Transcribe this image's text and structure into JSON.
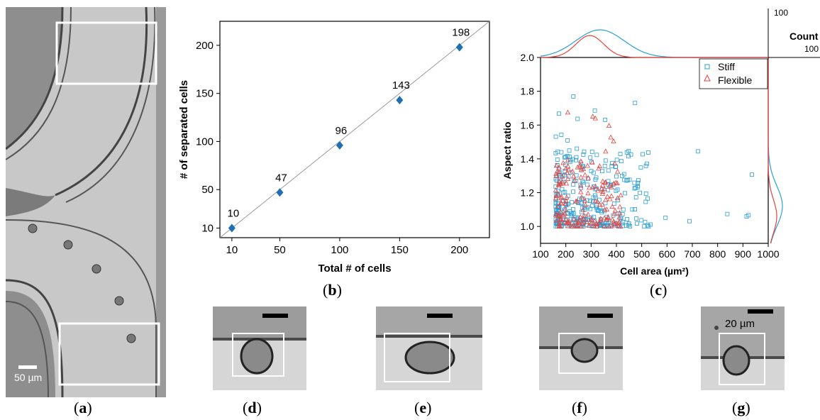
{
  "panels": {
    "a": {
      "label": "a",
      "scalebar": "50 µm"
    },
    "b": {
      "label": "b"
    },
    "c": {
      "label": "c"
    },
    "d": {
      "label": "d"
    },
    "e": {
      "label": "e"
    },
    "f": {
      "label": "f"
    },
    "g": {
      "label": "g",
      "scalebar": "20 µm"
    }
  },
  "chart_data": [
    {
      "type": "scatter",
      "xlabel": "Total # of cells",
      "ylabel": "# of separated cells",
      "xlim": [
        0,
        225
      ],
      "ylim": [
        0,
        225
      ],
      "xticks": [
        10,
        50,
        100,
        150,
        200
      ],
      "yticks": [
        10,
        50,
        100,
        150,
        200
      ],
      "x": [
        10,
        50,
        100,
        150,
        200
      ],
      "y": [
        10,
        47,
        96,
        143,
        198
      ],
      "data_labels": [
        "10",
        "47",
        "96",
        "143",
        "198"
      ],
      "marker": "diamond",
      "color": "#1f6fb5",
      "reference_line": "y = x"
    },
    {
      "type": "scatter",
      "xlabel": "Cell area (µm²)",
      "ylabel": "Aspect ratio",
      "xlim": [
        100,
        1000
      ],
      "ylim": [
        0.9,
        2.0
      ],
      "xticks": [
        100,
        200,
        300,
        400,
        500,
        600,
        700,
        800,
        900,
        1000
      ],
      "yticks": [
        1.0,
        1.2,
        1.4,
        1.6,
        1.8,
        2.0
      ],
      "legend_position": "top-right",
      "series": [
        {
          "name": "Stiff",
          "marker": "square",
          "color": "#2a9fd6",
          "marginal_peak_x": 335,
          "marginal_peak_y": 1.12
        },
        {
          "name": "Flexible",
          "marker": "triangle",
          "color": "#e8413c",
          "marginal_peak_x": 295,
          "marginal_peak_y": 1.06
        }
      ],
      "marginal_axis": {
        "label": "Count",
        "top_tick": "100",
        "right_tick": "100"
      }
    }
  ]
}
